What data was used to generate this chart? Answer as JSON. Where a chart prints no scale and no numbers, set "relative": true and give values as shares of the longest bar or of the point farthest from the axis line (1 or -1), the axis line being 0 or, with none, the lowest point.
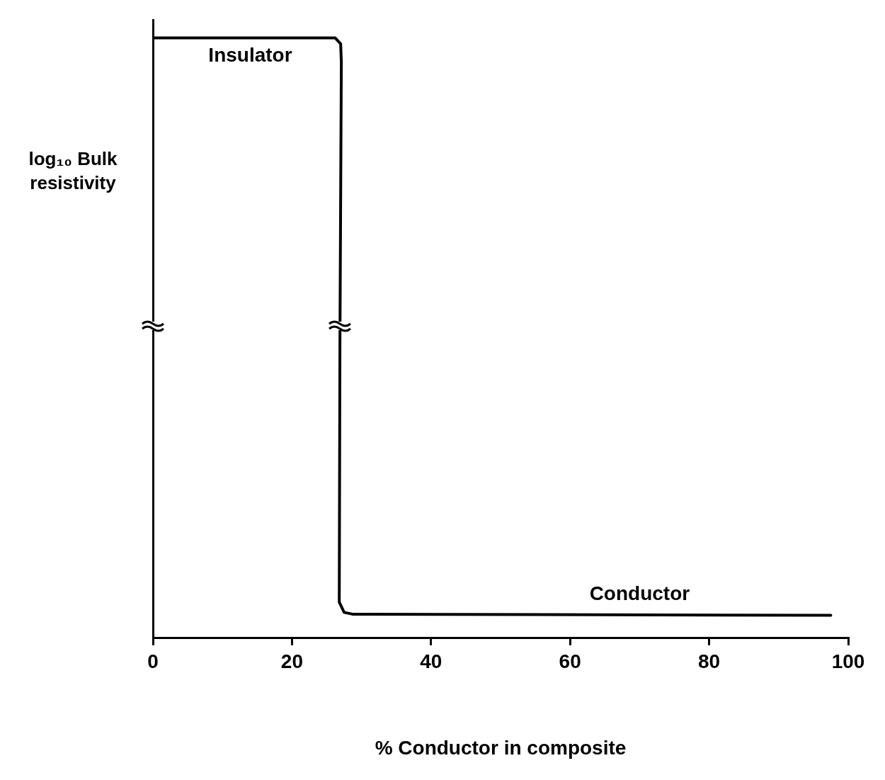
{
  "chart_data": {
    "type": "line",
    "xlabel": "% Conductor in composite",
    "ylabel": "log₁₀ Bulk resistivity",
    "relative": true,
    "xlim": [
      0,
      100
    ],
    "xticks": [
      0,
      20,
      40,
      60,
      80,
      100
    ],
    "grid": false,
    "legend": false,
    "marker": "none",
    "line_style": "solid",
    "series": [
      {
        "color": "#000000",
        "x": [
          0,
          26.2,
          27.0,
          27.1,
          26.9,
          26.8,
          27.5,
          28.7,
          97.5
        ],
        "values": [
          1,
          1,
          0.99,
          0.96,
          0.5,
          0.06,
          0.043,
          0.04,
          0.038
        ]
      }
    ],
    "annotations": [
      {
        "text": "Insulator",
        "x": 14,
        "y": 1
      },
      {
        "text": "Conductor",
        "x": 70,
        "y": 0.04
      }
    ]
  }
}
